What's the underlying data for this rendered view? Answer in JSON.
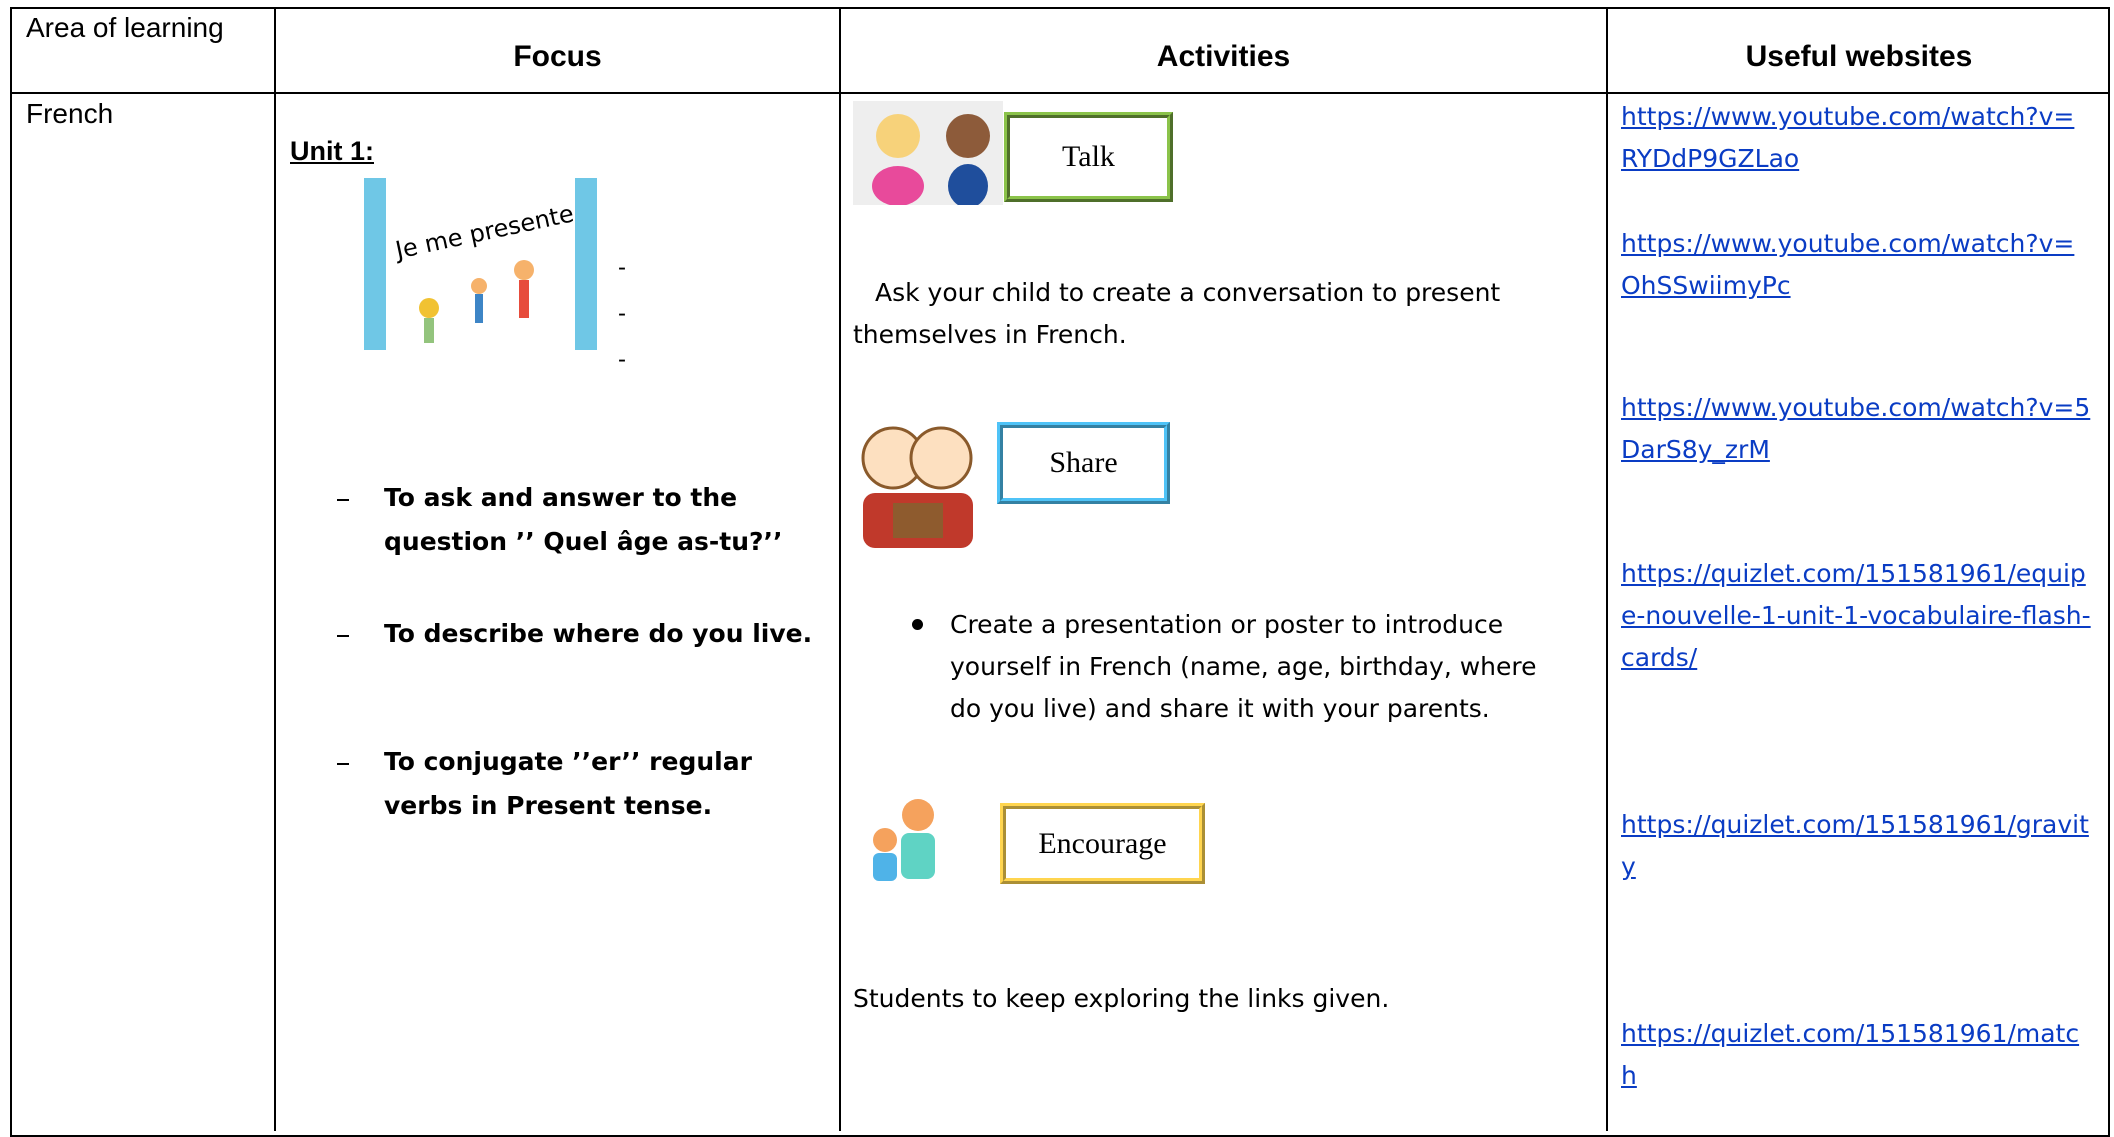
{
  "table": {
    "headers": [
      "Area of learning",
      "Focus",
      "Activities",
      "Useful websites"
    ],
    "rows": [
      {
        "area": "French",
        "focus": {
          "unit": "Unit 1:",
          "image_text": "Je me presente",
          "dashes": [
            "-",
            "-",
            "-"
          ],
          "objectives": [
            "To ask and answer to the question ’’ Quel âge as-tu?’’",
            "To describe where do you live.",
            "To conjugate ’’er’’ regular verbs in Present tense."
          ]
        },
        "activities": [
          {
            "label": "Talk",
            "text": "Ask your child to create a conversation to present themselves in French."
          },
          {
            "label": "Share",
            "text": "Create a presentation or poster to introduce yourself in French (name, age, birthday, where do you live) and share it with your parents."
          },
          {
            "label": "Encourage",
            "text": "Students to keep exploring the links given."
          }
        ],
        "websites": [
          "https://www.youtube.com/watch?v=RYDdP9GZLao",
          "https://www.youtube.com/watch?v=OhSSwiimyPc",
          "https://www.youtube.com/watch?v=5DarS8y_zrM",
          "https://quizlet.com/151581961/equipe-nouvelle-1-unit-1-vocabulaire-flash-cards/",
          "https://quizlet.com/151581961/gravity",
          "https://quizlet.com/151581961/match"
        ]
      }
    ]
  }
}
